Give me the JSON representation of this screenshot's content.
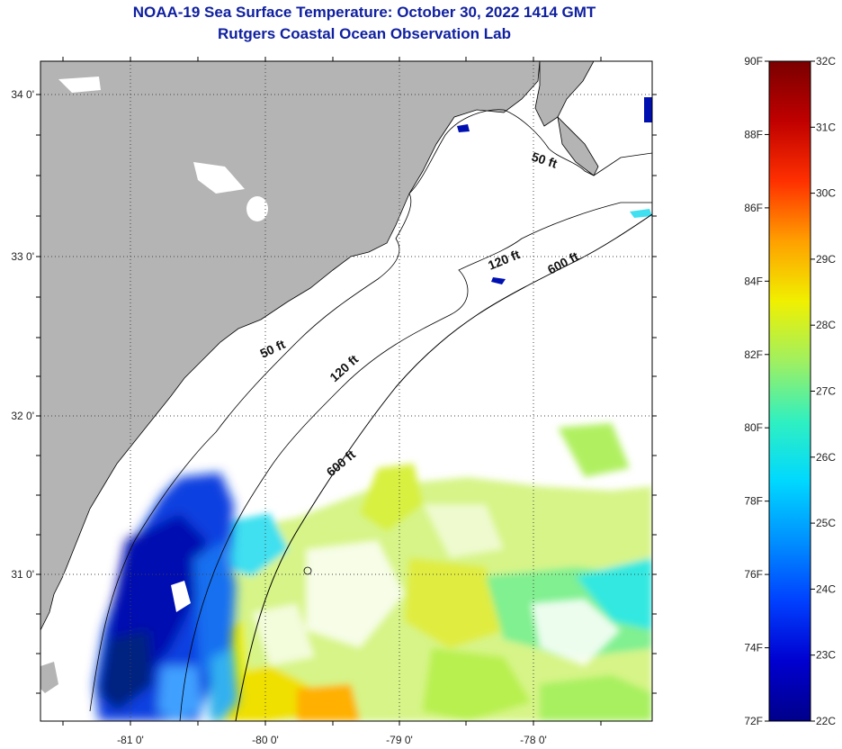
{
  "title": "NOAA-19 Sea Surface Temperature:  October 30, 2022 1414 GMT",
  "subtitle": "Rutgers Coastal Ocean Observation Lab",
  "lat_labels": [
    "34 0'",
    "33 0'",
    "32 0'",
    "31 0'"
  ],
  "lon_labels": [
    "-81 0'",
    "-80 0'",
    "-79 0'",
    "-78 0'"
  ],
  "depth_labels": [
    "50 ft",
    "120 ft",
    "600 ft",
    "50 ft",
    "120 ft",
    "600 ft"
  ],
  "colorbar": {
    "f_labels": [
      "90F",
      "88F",
      "86F",
      "84F",
      "82F",
      "80F",
      "78F",
      "76F",
      "74F",
      "72F"
    ],
    "c_labels": [
      "32C",
      "31C",
      "30C",
      "29C",
      "28C",
      "27C",
      "26C",
      "25C",
      "24C",
      "23C",
      "22C"
    ],
    "colors": [
      "#00008a",
      "#0000d0",
      "#0040ff",
      "#0090ff",
      "#00d8ff",
      "#30f0c0",
      "#a0f060",
      "#f0f000",
      "#ffa000",
      "#ff3000",
      "#c00000",
      "#7a0000"
    ]
  },
  "colors": {
    "land": "#b4b4b4",
    "ocean_cloud": "#ffffff",
    "coast_line": "#000000",
    "title": "#1020a0"
  }
}
